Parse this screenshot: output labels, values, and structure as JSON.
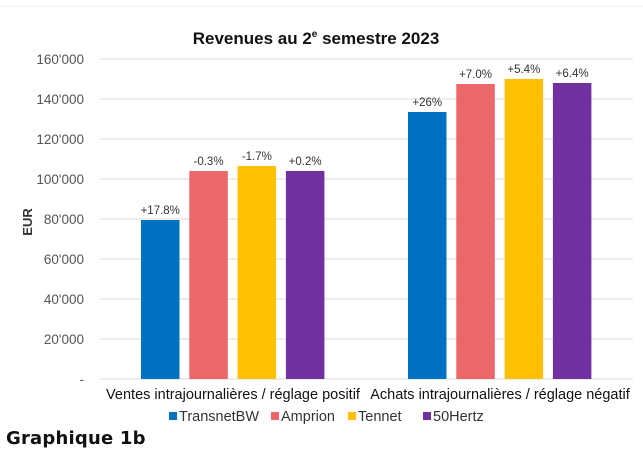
{
  "caption": "Graphique 1b",
  "chart_data": {
    "type": "bar",
    "title_main": "Revenues au 2",
    "title_sup": "e",
    "title_rest": " semestre 2023",
    "title": "Revenues au 2e semestre 2023",
    "xlabel": "",
    "ylabel": "EUR",
    "ylim": [
      0,
      160000
    ],
    "yticks": [
      0,
      20000,
      40000,
      60000,
      80000,
      100000,
      120000,
      140000,
      160000
    ],
    "ytick_labels": [
      "-",
      "20'000",
      "40'000",
      "60'000",
      "80'000",
      "100'000",
      "120'000",
      "140'000",
      "160'000"
    ],
    "grid": true,
    "categories": [
      "Ventes intrajournalières / réglage positif",
      "Achats intrajournalières / réglage négatif"
    ],
    "series": [
      {
        "name": "TransnetBW",
        "color": "#0070C0",
        "values": [
          79500,
          133500
        ],
        "labels": [
          "+17.8%",
          "+26%"
        ]
      },
      {
        "name": "Amprion",
        "color": "#EC6769",
        "values": [
          104000,
          147500
        ],
        "labels": [
          "-0.3%",
          "+7.0%"
        ]
      },
      {
        "name": "Tennet",
        "color": "#FFC000",
        "values": [
          106500,
          150000
        ],
        "labels": [
          "-1.7%",
          "+5.4%"
        ]
      },
      {
        "name": "50Hertz",
        "color": "#7030A0",
        "values": [
          104000,
          148000
        ],
        "labels": [
          "+0.2%",
          "+6.4%"
        ]
      }
    ],
    "legend_position": "bottom"
  }
}
